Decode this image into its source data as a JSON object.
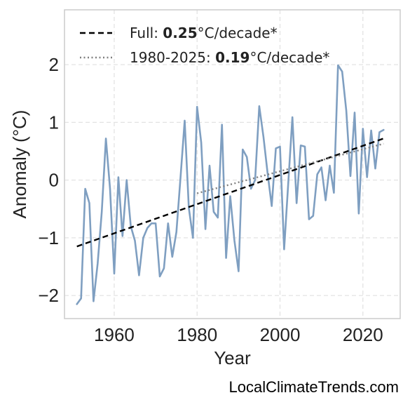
{
  "chart_data": {
    "type": "line",
    "title": "",
    "xlabel": "Year",
    "ylabel": "Anomaly (°C)",
    "xlim": [
      1948,
      2029
    ],
    "ylim": [
      -2.4,
      2.95
    ],
    "xticks": [
      1960,
      1980,
      2000,
      2020
    ],
    "yticks": [
      2,
      1,
      0,
      -1,
      -2
    ],
    "xtick_labels": [
      "1960",
      "1980",
      "2000",
      "2020"
    ],
    "ytick_labels": [
      "2",
      "1",
      "0",
      "−1",
      "−2"
    ],
    "grid": true,
    "legend_position": "top-left",
    "series": [
      {
        "type": "line",
        "color": "#7f9fc1",
        "x": [
          1951,
          1952,
          1953,
          1954,
          1955,
          1956,
          1957,
          1958,
          1959,
          1960,
          1961,
          1962,
          1963,
          1964,
          1965,
          1966,
          1967,
          1968,
          1969,
          1970,
          1971,
          1972,
          1973,
          1974,
          1975,
          1976,
          1977,
          1978,
          1979,
          1980,
          1981,
          1982,
          1983,
          1984,
          1985,
          1986,
          1987,
          1988,
          1989,
          1990,
          1991,
          1992,
          1993,
          1994,
          1995,
          1996,
          1997,
          1998,
          1999,
          2000,
          2001,
          2002,
          2003,
          2004,
          2005,
          2006,
          2007,
          2008,
          2009,
          2010,
          2011,
          2012,
          2013,
          2014,
          2015,
          2016,
          2017,
          2018,
          2019,
          2020,
          2021,
          2022,
          2023,
          2024,
          2025
        ],
        "y": [
          -2.15,
          -2.05,
          -0.15,
          -0.4,
          -2.1,
          -1.45,
          -0.55,
          0.72,
          -0.15,
          -1.62,
          0.05,
          -0.97,
          0.0,
          -0.8,
          -1.05,
          -1.65,
          -1.0,
          -0.83,
          -0.75,
          -0.75,
          -1.67,
          -1.53,
          -0.75,
          -1.33,
          -0.9,
          0.05,
          1.03,
          -0.48,
          -1.0,
          1.27,
          0.65,
          -0.85,
          0.25,
          -0.55,
          -0.65,
          0.96,
          -1.35,
          -0.28,
          -1.05,
          -1.58,
          0.53,
          0.4,
          -0.15,
          0.0,
          1.28,
          0.75,
          0.12,
          -0.45,
          0.55,
          0.58,
          -1.2,
          -0.05,
          1.09,
          -0.4,
          0.6,
          0.58,
          -0.68,
          -0.62,
          0.1,
          0.22,
          -0.35,
          0.25,
          -0.22,
          1.99,
          1.88,
          1.2,
          0.07,
          1.17,
          -0.58,
          0.89,
          0.05,
          0.86,
          0.2,
          0.83,
          0.87
        ]
      },
      {
        "name": "Full: 0.25°C/decade*",
        "type": "trend",
        "style": "dashed",
        "color": "#000000",
        "x": [
          1951,
          2025
        ],
        "y": [
          -1.15,
          0.72
        ]
      },
      {
        "name": "1980-2025: 0.19°C/decade*",
        "type": "trend",
        "style": "dotted",
        "color": "#808080",
        "x": [
          1980,
          2025
        ],
        "y": [
          -0.23,
          0.63
        ]
      }
    ],
    "legend": [
      {
        "prefix": "Full: ",
        "bold": "0.25",
        "suffix": "°C/decade*"
      },
      {
        "prefix": "1980-2025: ",
        "bold": "0.19",
        "suffix": "°C/decade*"
      }
    ]
  },
  "credit": "LocalClimateTrends.com"
}
